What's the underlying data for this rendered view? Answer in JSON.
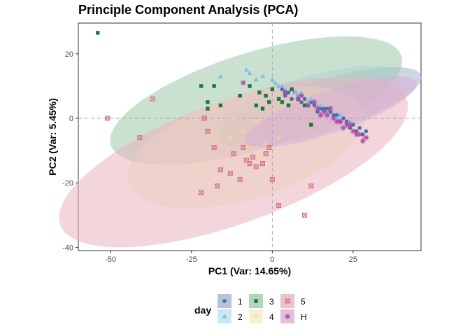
{
  "chart_data": {
    "type": "scatter",
    "title": "Principle Component Analysis (PCA)",
    "xlabel": "PC1 (Var: 14.65%)",
    "ylabel": "PC2 (Var: 5.45%)",
    "xlim": [
      -60,
      46
    ],
    "ylim": [
      -41,
      29.5
    ],
    "x_ticks": [
      -50,
      -25,
      0,
      25
    ],
    "y_ticks": [
      -40,
      -20,
      0,
      20
    ],
    "x_tick_labels": [
      "-50",
      "-25",
      "0",
      "25"
    ],
    "y_tick_labels": [
      "-40",
      "-20",
      "0",
      "20"
    ],
    "reference_lines": {
      "x": 0,
      "y": 0,
      "style": "dashed"
    },
    "grid": false,
    "legend": {
      "title": "day",
      "position": "bottom"
    },
    "series": [
      {
        "name": "1",
        "shape": "circle",
        "color": "#4a6fa5",
        "fill": "#a3b5d0",
        "ellipse": {
          "cx": 14.5,
          "cy": 3.5,
          "rx": 33,
          "ry": 8,
          "angle_deg": -17
        },
        "points": [
          [
            3,
            9
          ],
          [
            5,
            8
          ],
          [
            7,
            8
          ],
          [
            8,
            7
          ],
          [
            10,
            6
          ],
          [
            12,
            5
          ],
          [
            13,
            4
          ],
          [
            15,
            3
          ],
          [
            17,
            2
          ],
          [
            18,
            2
          ],
          [
            20,
            1
          ],
          [
            22,
            0
          ],
          [
            23,
            -1
          ],
          [
            25,
            -2
          ],
          [
            27,
            -3
          ],
          [
            29,
            -4
          ],
          [
            11,
            4
          ],
          [
            14,
            2
          ],
          [
            16,
            3
          ],
          [
            19,
            1
          ],
          [
            21,
            -1
          ],
          [
            24,
            -3
          ],
          [
            26,
            -4
          ],
          [
            9,
            5
          ],
          [
            6,
            6
          ],
          [
            28,
            -5
          ],
          [
            4,
            7
          ],
          [
            17,
            3
          ]
        ]
      },
      {
        "name": "2",
        "shape": "triangle",
        "color": "#7fbfe8",
        "fill": "#bfe0f5",
        "ellipse": {
          "cx": 10,
          "cy": 5.5,
          "rx": 29,
          "ry": 7,
          "angle_deg": -17
        },
        "points": [
          [
            -7,
            14
          ],
          [
            -3,
            13
          ],
          [
            -8,
            15
          ],
          [
            -16,
            13
          ],
          [
            0,
            12
          ],
          [
            3,
            10
          ],
          [
            6,
            9
          ],
          [
            9,
            8
          ],
          [
            12,
            6
          ],
          [
            15,
            4
          ],
          [
            18,
            3
          ],
          [
            21,
            1
          ],
          [
            24,
            -1
          ],
          [
            -5,
            12
          ],
          [
            1,
            11
          ],
          [
            4,
            9
          ],
          [
            8,
            7
          ],
          [
            11,
            5
          ],
          [
            14,
            4
          ],
          [
            17,
            2
          ],
          [
            20,
            0
          ],
          [
            2,
            10
          ],
          [
            7,
            8
          ]
        ]
      },
      {
        "name": "3",
        "shape": "square",
        "color": "#1a7a3a",
        "fill": "#9ec9ac",
        "ellipse": {
          "cx": -5,
          "cy": 5.5,
          "rx": 47,
          "ry": 15,
          "angle_deg": -17
        },
        "points": [
          [
            -54,
            26.5
          ],
          [
            -22,
            10
          ],
          [
            -18,
            10
          ],
          [
            -16,
            4
          ],
          [
            -20,
            5
          ],
          [
            -20,
            3
          ],
          [
            -7,
            10
          ],
          [
            -4,
            8
          ],
          [
            -2,
            7
          ],
          [
            0,
            9
          ],
          [
            3,
            5
          ],
          [
            5,
            4
          ],
          [
            8,
            6
          ],
          [
            10,
            4
          ],
          [
            12,
            -2
          ],
          [
            -5,
            4
          ],
          [
            -1,
            5
          ],
          [
            2,
            6
          ],
          [
            -10,
            7
          ],
          [
            6,
            9
          ],
          [
            -3,
            3
          ],
          [
            4,
            8
          ]
        ]
      },
      {
        "name": "4",
        "shape": "cross",
        "color": "#f0d890",
        "fill": "#f5ecc4",
        "ellipse": {
          "cx": -8,
          "cy": -9,
          "rx": 38,
          "ry": 16,
          "angle_deg": -17
        },
        "points": [
          [
            -25,
            -7
          ],
          [
            -24,
            -10
          ],
          [
            -23,
            -14
          ],
          [
            -17,
            -3
          ],
          [
            -12,
            0
          ],
          [
            -9,
            -4
          ],
          [
            -5,
            -1
          ],
          [
            -2,
            -8
          ],
          [
            -15,
            -12
          ],
          [
            -20,
            -16
          ],
          [
            6,
            -15
          ],
          [
            14,
            -13
          ],
          [
            -8,
            -9
          ],
          [
            -4,
            -12
          ],
          [
            2,
            -6
          ],
          [
            10,
            -18
          ],
          [
            -13,
            -6
          ],
          [
            -18,
            -8
          ]
        ]
      },
      {
        "name": "5",
        "shape": "square-x",
        "color": "#d07080",
        "fill": "#e8b4bd",
        "ellipse": {
          "cx": -12,
          "cy": -13.5,
          "rx": 57,
          "ry": 19,
          "angle_deg": -20
        },
        "points": [
          [
            -51,
            0
          ],
          [
            -41,
            -6
          ],
          [
            -37,
            6
          ],
          [
            -21,
            0
          ],
          [
            -20,
            -4
          ],
          [
            -18,
            -9
          ],
          [
            -16,
            -16
          ],
          [
            -12,
            -11
          ],
          [
            -9,
            -9
          ],
          [
            -8,
            -13
          ],
          [
            -7,
            -14
          ],
          [
            -5,
            -15
          ],
          [
            -3,
            -14
          ],
          [
            -1,
            -9
          ],
          [
            0,
            -19
          ],
          [
            2,
            -27
          ],
          [
            10,
            -30
          ],
          [
            12,
            -21
          ],
          [
            -13,
            -17
          ],
          [
            -17,
            -21
          ],
          [
            -22,
            -23
          ],
          [
            -10,
            -19
          ],
          [
            -6,
            -12
          ],
          [
            -2,
            -11
          ]
        ]
      },
      {
        "name": "H",
        "shape": "asterisk",
        "color": "#b04aa8",
        "fill": "#d9afd6",
        "ellipse": {
          "cx": 18,
          "cy": 2,
          "rx": 28,
          "ry": 6.5,
          "angle_deg": -19
        },
        "points": [
          [
            -9,
            11
          ],
          [
            4,
            8
          ],
          [
            8,
            6
          ],
          [
            11,
            4
          ],
          [
            14,
            3
          ],
          [
            17,
            1
          ],
          [
            19,
            0
          ],
          [
            21,
            -1
          ],
          [
            23,
            -2
          ],
          [
            25,
            -4
          ],
          [
            27,
            -5
          ],
          [
            29,
            -6
          ],
          [
            13,
            5
          ],
          [
            16,
            2
          ],
          [
            18,
            3
          ],
          [
            20,
            -1
          ],
          [
            22,
            -3
          ],
          [
            24,
            -2
          ],
          [
            26,
            -5
          ],
          [
            9,
            7
          ],
          [
            15,
            1
          ],
          [
            28,
            -7
          ]
        ]
      }
    ]
  }
}
